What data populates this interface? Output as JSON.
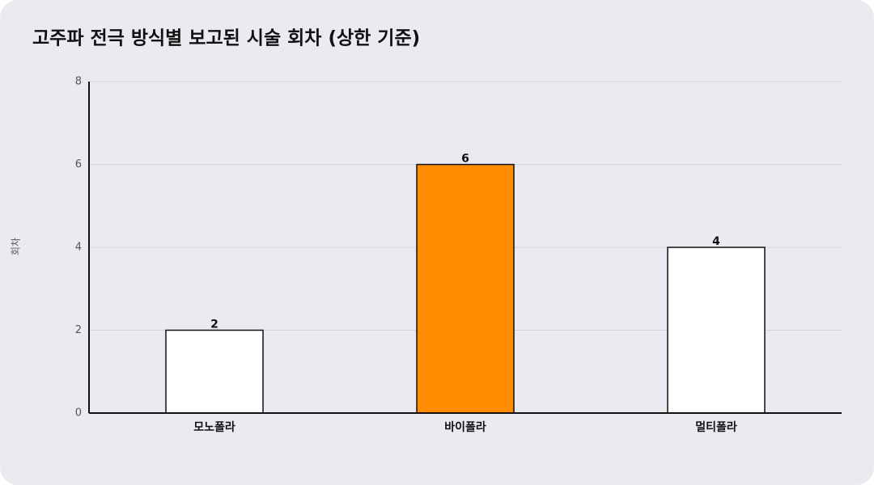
{
  "chart_data": {
    "type": "bar",
    "title": "고주파 전극 방식별 보고된 시술 회차 (상한 기준)",
    "y_label": "회차",
    "categories": [
      "모노폴라",
      "바이폴라",
      "멀티폴라"
    ],
    "values": [
      2,
      6,
      4
    ],
    "colors": [
      "#ffffff",
      "#ff8c00",
      "#ffffff"
    ],
    "edgecolor": "#111111",
    "ylim": [
      0,
      8
    ],
    "yticks": [
      0,
      2,
      4,
      6,
      8
    ],
    "grid": true
  }
}
